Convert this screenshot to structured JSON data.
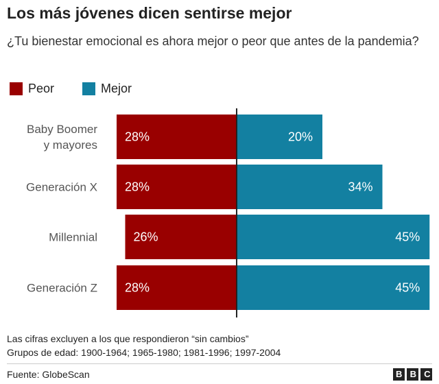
{
  "chart_data": {
    "type": "diverging_bar",
    "title": "Los más jóvenes dicen sentirse mejor",
    "subtitle": "¿Tu bienestar emocional es ahora mejor o peor que antes de la pandemia?",
    "categories": [
      "Baby Boomer\ny mayores",
      "Generación X",
      "Millennial",
      "Generación Z"
    ],
    "series": [
      {
        "name": "Peor",
        "color": "#990000",
        "values": [
          28,
          28,
          26,
          28
        ],
        "value_labels": [
          "28%",
          "28%",
          "26%",
          "28%"
        ]
      },
      {
        "name": "Mejor",
        "color": "#1380a1",
        "values": [
          20,
          34,
          45,
          45
        ],
        "value_labels": [
          "20%",
          "34%",
          "45%",
          "45%"
        ]
      }
    ],
    "notes": [
      "Las cifras excluyen a los que respondieron “sin cambios”",
      "Grupos de edad: 1900-1964; 1965-1980; 1981-1996; 1997-2004"
    ],
    "source": "Fuente: GlobeScan",
    "logo": "BBC"
  }
}
